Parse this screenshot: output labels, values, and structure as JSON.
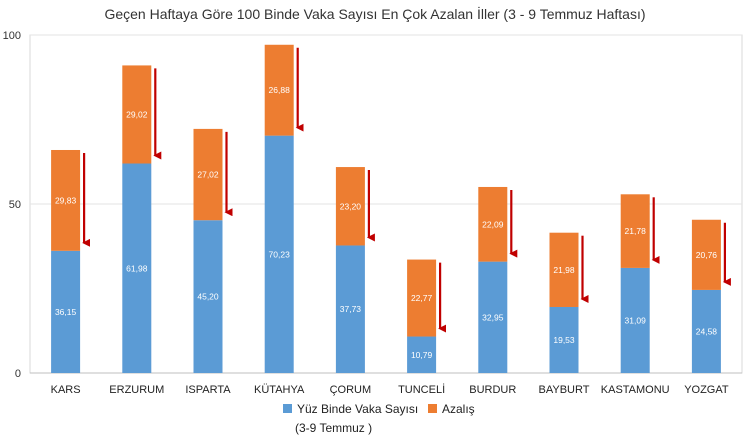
{
  "chart_data": {
    "type": "bar",
    "stacked": true,
    "title": "Geçen Haftaya Göre 100 Binde Vaka Sayısı En Çok Azalan İller (3 - 9 Temmuz Haftası)",
    "categories": [
      "KARS",
      "ERZURUM",
      "ISPARTA",
      "KÜTAHYA",
      "ÇORUM",
      "TUNCELİ",
      "BURDUR",
      "BAYBURT",
      "KASTAMONU",
      "YOZGAT"
    ],
    "series": [
      {
        "name": "Yüz Binde Vaka Sayısı (3-9 Temmuz )",
        "legend_lines": [
          "Yüz Binde Vaka Sayısı",
          "(3-9 Temmuz )"
        ],
        "color": "#5B9BD5",
        "values": [
          36.15,
          61.98,
          45.2,
          70.23,
          37.73,
          10.79,
          32.95,
          19.53,
          31.09,
          24.58
        ],
        "labels": [
          "36,15",
          "61,98",
          "45,20",
          "70,23",
          "37,73",
          "10,79",
          "32,95",
          "19,53",
          "31,09",
          "24,58"
        ]
      },
      {
        "name": "Azalış",
        "color": "#ED7D31",
        "values": [
          29.83,
          29.02,
          27.02,
          26.88,
          23.2,
          22.77,
          22.09,
          21.98,
          21.78,
          20.76
        ],
        "labels": [
          "29,83",
          "29,02",
          "27,02",
          "26,88",
          "23,20",
          "22,77",
          "22,09",
          "21,98",
          "21,78",
          "20,76"
        ]
      }
    ],
    "yticks": [
      0,
      50,
      100
    ],
    "ylim": [
      0,
      100
    ],
    "arrow_color": "#C00000",
    "grid": true,
    "legend_position": "bottom"
  }
}
